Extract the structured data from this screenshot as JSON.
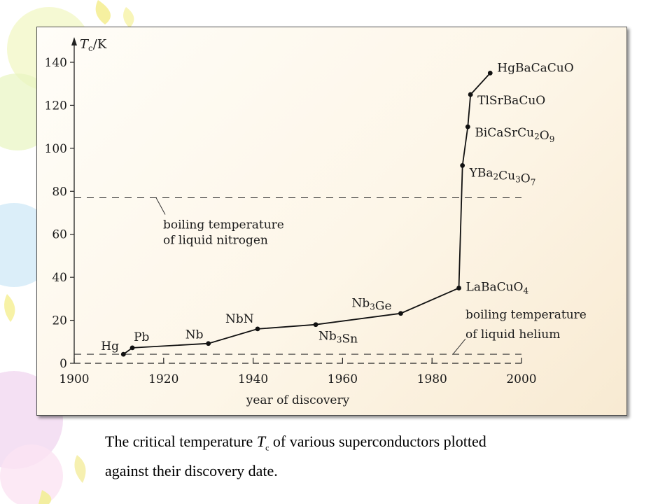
{
  "caption": {
    "pre": "The critical temperature ",
    "sym": "T",
    "sub": "c",
    "post": " of various superconductors plotted",
    "line2": "against their discovery date."
  },
  "chart_data": {
    "type": "line",
    "title": "",
    "xlabel": "year of discovery",
    "ylabel_main": "T",
    "ylabel_sub": "c",
    "ylabel_unit": "/K",
    "xlim": [
      1900,
      2000
    ],
    "ylim": [
      0,
      140
    ],
    "xticks": [
      1900,
      1920,
      1940,
      1960,
      1980,
      2000
    ],
    "yticks": [
      0,
      20,
      40,
      60,
      80,
      100,
      120,
      140
    ],
    "grid": false,
    "series": [
      {
        "points": [
          {
            "x": 1911,
            "y": 4.2,
            "label": "Hg"
          },
          {
            "x": 1913,
            "y": 7.2,
            "label": "Pb"
          },
          {
            "x": 1930,
            "y": 9.2,
            "label": "Nb"
          },
          {
            "x": 1941,
            "y": 16,
            "label": "NbN"
          },
          {
            "x": 1954,
            "y": 18,
            "label": "Nb3Sn"
          },
          {
            "x": 1973,
            "y": 23.2,
            "label": "Nb3Ge"
          },
          {
            "x": 1986,
            "y": 35,
            "label": "LaBaCuO4"
          },
          {
            "x": 1986.8,
            "y": 92,
            "label": "YBa2Cu3O7"
          },
          {
            "x": 1988,
            "y": 110,
            "label": "BiCaSrCu2O9"
          },
          {
            "x": 1988.6,
            "y": 125,
            "label": "TlSrBaCuO"
          },
          {
            "x": 1993,
            "y": 135,
            "label": "HgBaCaCuO"
          }
        ]
      }
    ],
    "reference_lines": [
      {
        "y": 77,
        "label_lines": [
          "boiling temperature",
          "of liquid nitrogen"
        ]
      },
      {
        "y": 4.2,
        "label_lines": [
          "boiling temperature",
          "of liquid helium"
        ]
      }
    ]
  }
}
